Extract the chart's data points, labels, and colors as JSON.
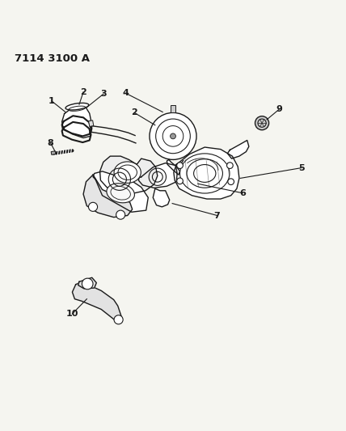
{
  "title": "7114 3100 A",
  "bg_color": "#f5f5f0",
  "line_color": "#1a1a1a",
  "figsize": [
    4.28,
    5.33
  ],
  "dpi": 100
}
